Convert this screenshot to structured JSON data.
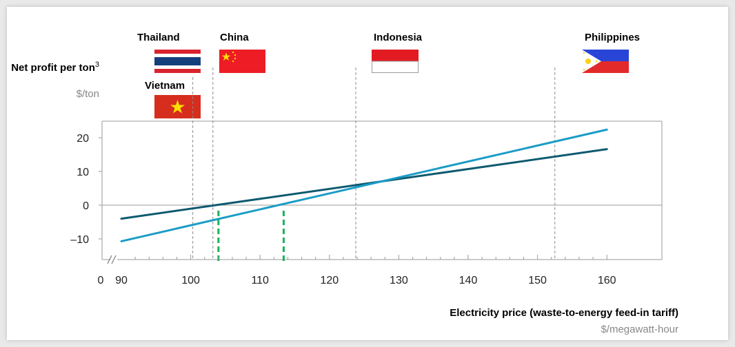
{
  "chart_data": {
    "type": "line",
    "ylabel": "Net profit per ton",
    "ylabel_superscript": "3",
    "yunit": "$/ton",
    "xlabel": "Electricity price (waste-to-energy feed-in tariff)",
    "xunit": "$/megawatt-hour",
    "xlim": [
      90,
      160
    ],
    "ylim": [
      -15,
      25
    ],
    "x_ticks": [
      90,
      100,
      110,
      120,
      130,
      140,
      150,
      160
    ],
    "x_origin_label": "0",
    "y_ticks": [
      -10,
      0,
      10,
      20
    ],
    "y_tick_labels": [
      "–10",
      "0",
      "10",
      "20"
    ],
    "series": [
      {
        "color": "#0e5a70",
        "x": [
          90,
          160
        ],
        "y": [
          -4,
          16.6
        ]
      },
      {
        "color": "#1a9cc6",
        "x": [
          90,
          160
        ],
        "y": [
          -10.7,
          22.4
        ]
      }
    ],
    "breakeven_markers": [
      {
        "x": 104,
        "color": "#17b35a"
      },
      {
        "x": 113.4,
        "color": "#17b35a"
      }
    ],
    "countries": [
      {
        "name": "Thailand",
        "x": 100.3
      },
      {
        "name": "Vietnam",
        "x": 100.3
      },
      {
        "name": "China",
        "x": 103.2
      },
      {
        "name": "Indonesia",
        "x": 123.8
      },
      {
        "name": "Philippines",
        "x": 152.5
      }
    ],
    "grid": false
  },
  "colors": {
    "axis": "#9a9a9a",
    "guide": "#8a8a8a",
    "thailand_red": "#d9232e",
    "thailand_blue": "#143f7c",
    "vietnam_red": "#d62d1e",
    "vietnam_star": "#ffde00",
    "china_red": "#ee1c25",
    "china_star": "#ffde00",
    "indonesia_red": "#e21b22",
    "philippines_blue": "#2845d8",
    "philippines_red": "#e32a2a",
    "philippines_sun": "#fcd116"
  }
}
